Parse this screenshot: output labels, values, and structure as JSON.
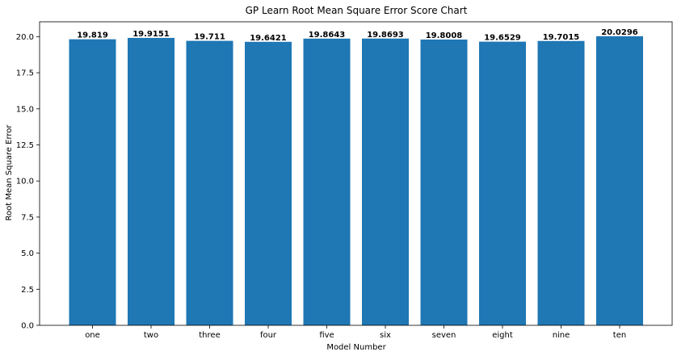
{
  "chart_data": {
    "type": "bar",
    "title": "GP Learn Root Mean Square Error Score Chart",
    "xlabel": "Model Number",
    "ylabel": "Root Mean Square Error",
    "categories": [
      "one",
      "two",
      "three",
      "four",
      "five",
      "six",
      "seven",
      "eight",
      "nine",
      "ten"
    ],
    "values": [
      19.819,
      19.9151,
      19.711,
      19.6421,
      19.8643,
      19.8693,
      19.8008,
      19.6529,
      19.7015,
      20.0296
    ],
    "data_labels": [
      "19.819",
      "19.9151",
      "19.711",
      "19.6421",
      "19.8643",
      "19.8693",
      "19.8008",
      "19.6529",
      "19.7015",
      "20.0296"
    ],
    "yticks": [
      0,
      2.5,
      5,
      7.5,
      10,
      12.5,
      15,
      17.5,
      20
    ],
    "ytick_labels": [
      "0.0",
      "2.5",
      "5.0",
      "7.5",
      "10.0",
      "12.5",
      "15.0",
      "17.5",
      "20.0"
    ],
    "ylim": [
      0,
      21.03
    ],
    "bar_color": "#1f77b4",
    "grid": false,
    "legend": "none"
  }
}
